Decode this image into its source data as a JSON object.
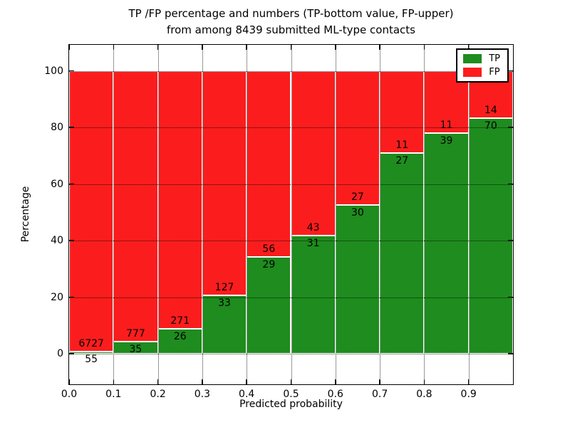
{
  "chart_data": {
    "type": "bar",
    "variant": "stacked-percentage",
    "title": "TP /FP percentage and numbers (TP-bottom value, FP-upper) from among 8439 submitted ML-type contacts",
    "title_lines": [
      "TP /FP percentage and numbers (TP-bottom value, FP-upper)",
      "from among 8439 submitted ML-type contacts"
    ],
    "xlabel": "Predicted probability",
    "ylabel": "Percentage",
    "total_contacts": 8439,
    "bin_width": 0.1,
    "bin_starts": [
      0.0,
      0.1,
      0.2,
      0.3,
      0.4,
      0.5,
      0.6,
      0.7,
      0.8,
      0.9
    ],
    "series": [
      {
        "name": "TP",
        "color": "#1e8c1e",
        "counts": [
          55,
          35,
          26,
          33,
          29,
          31,
          30,
          27,
          39,
          70
        ]
      },
      {
        "name": "FP",
        "color": "#fb1d1d",
        "counts": [
          6727,
          777,
          271,
          127,
          56,
          43,
          27,
          11,
          11,
          14
        ]
      }
    ],
    "xticks": [
      "0.0",
      "0.1",
      "0.2",
      "0.3",
      "0.4",
      "0.5",
      "0.6",
      "0.7",
      "0.8",
      "0.9"
    ],
    "yticks": [
      "0",
      "20",
      "40",
      "60",
      "80",
      "100"
    ],
    "xlim": [
      0.0,
      1.0
    ],
    "ylim": [
      -10.8,
      109.2
    ],
    "grid": true,
    "legend": {
      "position": "upper-right",
      "entries": [
        {
          "label": "TP",
          "color": "#1e8c1e"
        },
        {
          "label": "FP",
          "color": "#fb1d1d"
        }
      ]
    }
  }
}
